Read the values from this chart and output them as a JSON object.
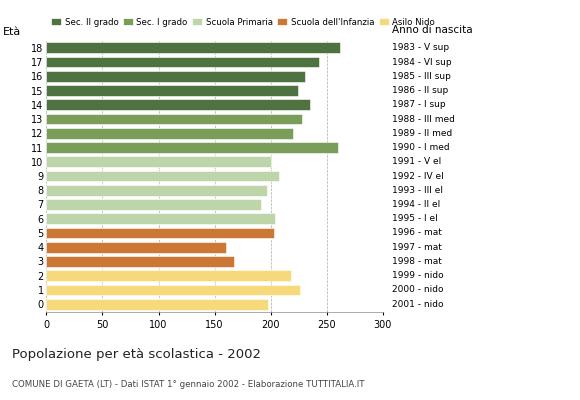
{
  "ages": [
    18,
    17,
    16,
    15,
    14,
    13,
    12,
    11,
    10,
    9,
    8,
    7,
    6,
    5,
    4,
    3,
    2,
    1,
    0
  ],
  "values": [
    262,
    243,
    231,
    224,
    235,
    228,
    220,
    260,
    200,
    207,
    197,
    191,
    204,
    203,
    160,
    167,
    218,
    226,
    198
  ],
  "anni_nascita": [
    "1983 - V sup",
    "1984 - VI sup",
    "1985 - III sup",
    "1986 - II sup",
    "1987 - I sup",
    "1988 - III med",
    "1989 - II med",
    "1990 - I med",
    "1991 - V el",
    "1992 - IV el",
    "1993 - III el",
    "1994 - II el",
    "1995 - I el",
    "1996 - mat",
    "1997 - mat",
    "1998 - mat",
    "1999 - nido",
    "2000 - nido",
    "2001 - nido"
  ],
  "colors": [
    "#4e7340",
    "#4e7340",
    "#4e7340",
    "#4e7340",
    "#4e7340",
    "#7a9e5a",
    "#7a9e5a",
    "#7a9e5a",
    "#bdd5a8",
    "#bdd5a8",
    "#bdd5a8",
    "#bdd5a8",
    "#bdd5a8",
    "#cc7733",
    "#cc7733",
    "#cc7733",
    "#f5d97a",
    "#f5d97a",
    "#f5d97a"
  ],
  "legend_labels": [
    "Sec. II grado",
    "Sec. I grado",
    "Scuola Primaria",
    "Scuola dell'Infanzia",
    "Asilo Nido"
  ],
  "legend_colors": [
    "#4e7340",
    "#7a9e5a",
    "#bdd5a8",
    "#cc7733",
    "#f5d97a"
  ],
  "title": "Popolazione per età scolastica - 2002",
  "subtitle": "COMUNE DI GAETA (LT) - Dati ISTAT 1° gennaio 2002 - Elaborazione TUTTITALIA.IT",
  "label_eta": "Età",
  "label_anno": "Anno di nascita",
  "xlim": [
    0,
    300
  ],
  "xticks": [
    0,
    50,
    100,
    150,
    200,
    250,
    300
  ],
  "background_color": "#ffffff",
  "bar_height": 0.75
}
